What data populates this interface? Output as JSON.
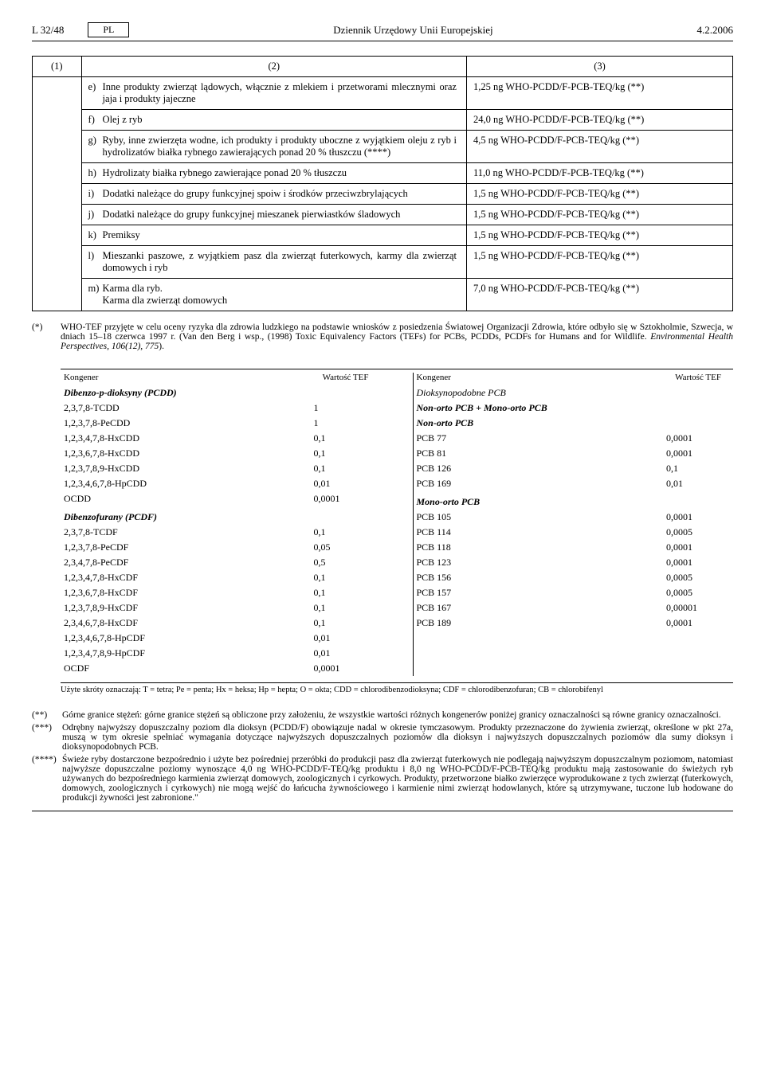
{
  "header": {
    "left": "L 32/48",
    "lang": "PL",
    "center": "Dziennik Urzędowy Unii Europejskiej",
    "right": "4.2.2006"
  },
  "main_table": {
    "h1": "(1)",
    "h2": "(2)",
    "h3": "(3)",
    "rows": [
      {
        "l": "e)",
        "t": "Inne produkty zwierząt lądowych, włącznie z mlekiem i przetworami mlecznymi oraz jaja i produkty jajeczne",
        "v": "1,25 ng WHO-PCDD/F-PCB-TEQ/kg (**)"
      },
      {
        "l": "f)",
        "t": "Olej z ryb",
        "v": "24,0 ng WHO-PCDD/F-PCB-TEQ/kg (**)"
      },
      {
        "l": "g)",
        "t": "Ryby, inne zwierzęta wodne, ich produkty i produkty uboczne z wyjątkiem oleju z ryb i hydrolizatów białka rybnego zawierających ponad 20 % tłuszczu (****)",
        "v": "4,5 ng WHO-PCDD/F-PCB-TEQ/kg (**)"
      },
      {
        "l": "h)",
        "t": "Hydrolizaty białka rybnego zawierające ponad 20 % tłuszczu",
        "v": "11,0 ng WHO-PCDD/F-PCB-TEQ/kg (**)"
      },
      {
        "l": "i)",
        "t": "Dodatki należące do grupy funkcyjnej spoiw i środków przeciwzbrylających",
        "v": "1,5 ng WHO-PCDD/F-PCB-TEQ/kg (**)"
      },
      {
        "l": "j)",
        "t": "Dodatki należące do grupy funkcyjnej mieszanek pierwiastków śladowych",
        "v": "1,5 ng WHO-PCDD/F-PCB-TEQ/kg (**)"
      },
      {
        "l": "k)",
        "t": "Premiksy",
        "v": "1,5 ng WHO-PCDD/F-PCB-TEQ/kg (**)"
      },
      {
        "l": "l)",
        "t": "Mieszanki paszowe, z wyjątkiem pasz dla zwierząt futerkowych, karmy dla zwierząt domowych i ryb",
        "v": "1,5 ng WHO-PCDD/F-PCB-TEQ/kg (**)"
      },
      {
        "l": "m)",
        "t": "Karma dla ryb.\nKarma dla zwierząt domowych",
        "v": "7,0 ng WHO-PCDD/F-PCB-TEQ/kg (**)"
      }
    ]
  },
  "footnote_star": {
    "mark": "(*)",
    "text1": "WHO-TEF przyjęte w celu oceny ryzyka dla zdrowia ludzkiego na podstawie wniosków z posiedzenia Światowej Organizacji Zdrowia, które odbyło się w Sztokholmie, Szwecja, w dniach 15–18 czerwca 1997 r. (Van den Berg i wsp., (1998) Toxic Equivalency Factors (TEFs) for PCBs, PCDDs, PCDFs for Humans and for Wildlife. ",
    "text_it": "Environmental Health Perspectives, 106(12), 775",
    "text2": ")."
  },
  "tef": {
    "h_left_name": "Kongener",
    "h_left_val": "Wartość TEF",
    "h_right_name": "Kongener",
    "h_right_val": "Wartość TEF",
    "left": [
      {
        "n": "Dibenzo-p-dioksyny (PCDD)",
        "v": "",
        "s": "bold-it"
      },
      {
        "n": "2,3,7,8-TCDD",
        "v": "1"
      },
      {
        "n": "1,2,3,7,8-PeCDD",
        "v": "1"
      },
      {
        "n": "1,2,3,4,7,8-HxCDD",
        "v": "0,1"
      },
      {
        "n": "1,2,3,6,7,8-HxCDD",
        "v": "0,1"
      },
      {
        "n": "1,2,3,7,8,9-HxCDD",
        "v": "0,1"
      },
      {
        "n": "1,2,3,4,6,7,8-HpCDD",
        "v": "0,01"
      },
      {
        "n": "OCDD",
        "v": "0,0001"
      },
      {
        "n": "",
        "v": ""
      },
      {
        "n": "Dibenzofurany (PCDF)",
        "v": "",
        "s": "bold-it"
      },
      {
        "n": "2,3,7,8-TCDF",
        "v": "0,1"
      },
      {
        "n": "1,2,3,7,8-PeCDF",
        "v": "0,05"
      },
      {
        "n": "2,3,4,7,8-PeCDF",
        "v": "0,5"
      },
      {
        "n": "1,2,3,4,7,8-HxCDF",
        "v": "0,1"
      },
      {
        "n": "1,2,3,6,7,8-HxCDF",
        "v": "0,1"
      },
      {
        "n": "1,2,3,7,8,9-HxCDF",
        "v": "0,1"
      },
      {
        "n": "2,3,4,6,7,8-HxCDF",
        "v": "0,1"
      },
      {
        "n": "1,2,3,4,6,7,8-HpCDF",
        "v": "0,01"
      },
      {
        "n": "1,2,3,4,7,8,9-HpCDF",
        "v": "0,01"
      },
      {
        "n": "OCDF",
        "v": "0,0001"
      }
    ],
    "right": [
      {
        "n": "Dioksynopodobne PCB",
        "v": "",
        "s": "it"
      },
      {
        "n": "Non-orto PCB + Mono-orto PCB",
        "v": "",
        "s": "bold-it"
      },
      {
        "n": "Non-orto PCB",
        "v": "",
        "s": "bold-it"
      },
      {
        "n": "PCB 77",
        "v": "0,0001"
      },
      {
        "n": "PCB 81",
        "v": "0,0001"
      },
      {
        "n": "PCB 126",
        "v": "0,1"
      },
      {
        "n": "PCB 169",
        "v": "0,01"
      },
      {
        "n": "",
        "v": ""
      },
      {
        "n": "Mono-orto PCB",
        "v": "",
        "s": "bold-it"
      },
      {
        "n": "PCB 105",
        "v": "0,0001"
      },
      {
        "n": "PCB 114",
        "v": "0,0005"
      },
      {
        "n": "PCB 118",
        "v": "0,0001"
      },
      {
        "n": "PCB 123",
        "v": "0,0001"
      },
      {
        "n": "PCB 156",
        "v": "0,0005"
      },
      {
        "n": "PCB 157",
        "v": "0,0005"
      },
      {
        "n": "PCB 167",
        "v": "0,00001"
      },
      {
        "n": "PCB 189",
        "v": "0,0001"
      }
    ]
  },
  "abbrev": "Użyte skróty oznaczają: T = tetra; Pe = penta; Hx = heksa; Hp = hepta; O = okta; CDD = chlorodibenzodioksyna; CDF = chlorodibenzofuran; CB = chlorobifenyl",
  "endnotes": [
    {
      "m": "(**)",
      "t": "Górne granice stężeń: górne granice stężeń są obliczone przy założeniu, że wszystkie wartości różnych kongenerów poniżej granicy oznaczalności są równe granicy oznaczalności."
    },
    {
      "m": "(***)",
      "t": "Odrębny najwyższy dopuszczalny poziom dla dioksyn (PCDD/F) obowiązuje nadal w okresie tymczasowym. Produkty przeznaczone do żywienia zwierząt, określone w pkt 27a, muszą w tym okresie spełniać wymagania dotyczące najwyższych dopuszczalnych poziomów dla dioksyn i najwyższych dopuszczalnych poziomów dla sumy dioksyn i dioksynopodobnych PCB."
    },
    {
      "m": "(****)",
      "t": "Świeże ryby dostarczone bezpośrednio i użyte bez pośredniej przeróbki do produkcji pasz dla zwierząt futerkowych nie podlegają najwyższym dopuszczalnym poziomom, natomiast najwyższe dopuszczalne poziomy wynoszące 4,0 ng WHO-PCDD/F-TEQ/kg produktu i 8,0 ng WHO-PCDD/F-PCB-TEQ/kg produktu mają zastosowanie do świeżych ryb używanych do bezpośredniego karmienia zwierząt domowych, zoologicznych i cyrkowych. Produkty, przetworzone białko zwierzęce wyprodukowane z tych zwierząt (futerkowych, domowych, zoologicznych i cyrkowych) nie mogą wejść do łańcucha żywnościowego i karmienie nimi zwierząt hodowlanych, które są utrzymywane, tuczone lub hodowane do produkcji żywności jest zabronione.\""
    }
  ]
}
